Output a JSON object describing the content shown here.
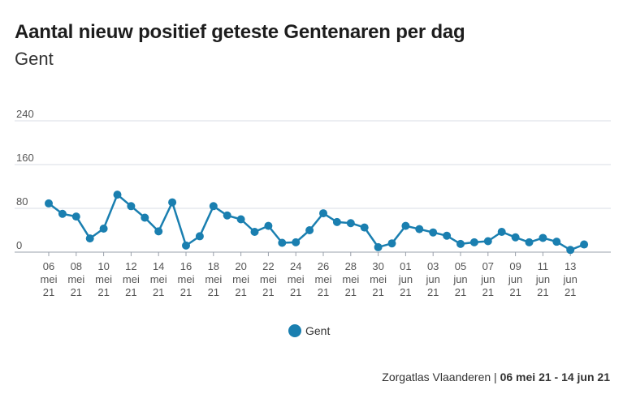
{
  "header": {
    "title": "Aantal nieuw positief geteste Gentenaren per dag",
    "subtitle": "Gent"
  },
  "footer": {
    "source": "Zorgatlas Vlaanderen",
    "separator": " | ",
    "range": "06 mei 21 - 14 jun 21"
  },
  "colors": {
    "series": "#1a7fb0",
    "grid": "#d9dce6",
    "axis": "#555555"
  },
  "chart_data": {
    "type": "line",
    "title": "Aantal nieuw positief geteste Gentenaren per dag",
    "subtitle": "Gent",
    "xlabel": "",
    "ylabel": "",
    "ylim": [
      0,
      240
    ],
    "yticks": [
      0,
      80,
      160,
      240
    ],
    "grid": true,
    "legend_position": "bottom-center",
    "x": [
      "06 mei 21",
      "07 mei 21",
      "08 mei 21",
      "09 mei 21",
      "10 mei 21",
      "11 mei 21",
      "12 mei 21",
      "13 mei 21",
      "14 mei 21",
      "15 mei 21",
      "16 mei 21",
      "17 mei 21",
      "18 mei 21",
      "19 mei 21",
      "20 mei 21",
      "21 mei 21",
      "22 mei 21",
      "23 mei 21",
      "24 mei 21",
      "25 mei 21",
      "26 mei 21",
      "27 mei 21",
      "28 mei 21",
      "29 mei 21",
      "30 mei 21",
      "31 mei 21",
      "01 jun 21",
      "02 jun 21",
      "03 jun 21",
      "04 jun 21",
      "05 jun 21",
      "06 jun 21",
      "07 jun 21",
      "08 jun 21",
      "09 jun 21",
      "10 jun 21",
      "11 jun 21",
      "12 jun 21",
      "13 jun 21",
      "14 jun 21"
    ],
    "xtick_labels": [
      [
        "06",
        "mei",
        "21"
      ],
      [
        "08",
        "mei",
        "21"
      ],
      [
        "10",
        "mei",
        "21"
      ],
      [
        "12",
        "mei",
        "21"
      ],
      [
        "14",
        "mei",
        "21"
      ],
      [
        "16",
        "mei",
        "21"
      ],
      [
        "18",
        "mei",
        "21"
      ],
      [
        "20",
        "mei",
        "21"
      ],
      [
        "22",
        "mei",
        "21"
      ],
      [
        "24",
        "mei",
        "21"
      ],
      [
        "26",
        "mei",
        "21"
      ],
      [
        "28",
        "mei",
        "21"
      ],
      [
        "30",
        "mei",
        "21"
      ],
      [
        "01",
        "jun",
        "21"
      ],
      [
        "03",
        "jun",
        "21"
      ],
      [
        "05",
        "jun",
        "21"
      ],
      [
        "07",
        "jun",
        "21"
      ],
      [
        "09",
        "jun",
        "21"
      ],
      [
        "11",
        "jun",
        "21"
      ],
      [
        "13",
        "jun",
        "21"
      ]
    ],
    "series": [
      {
        "name": "Gent",
        "values": [
          89,
          70,
          65,
          25,
          43,
          105,
          84,
          63,
          38,
          91,
          12,
          29,
          84,
          67,
          60,
          37,
          48,
          17,
          18,
          40,
          71,
          55,
          53,
          45,
          9,
          16,
          48,
          42,
          36,
          30,
          15,
          18,
          20,
          37,
          27,
          18,
          26,
          19,
          4,
          14
        ]
      }
    ]
  }
}
